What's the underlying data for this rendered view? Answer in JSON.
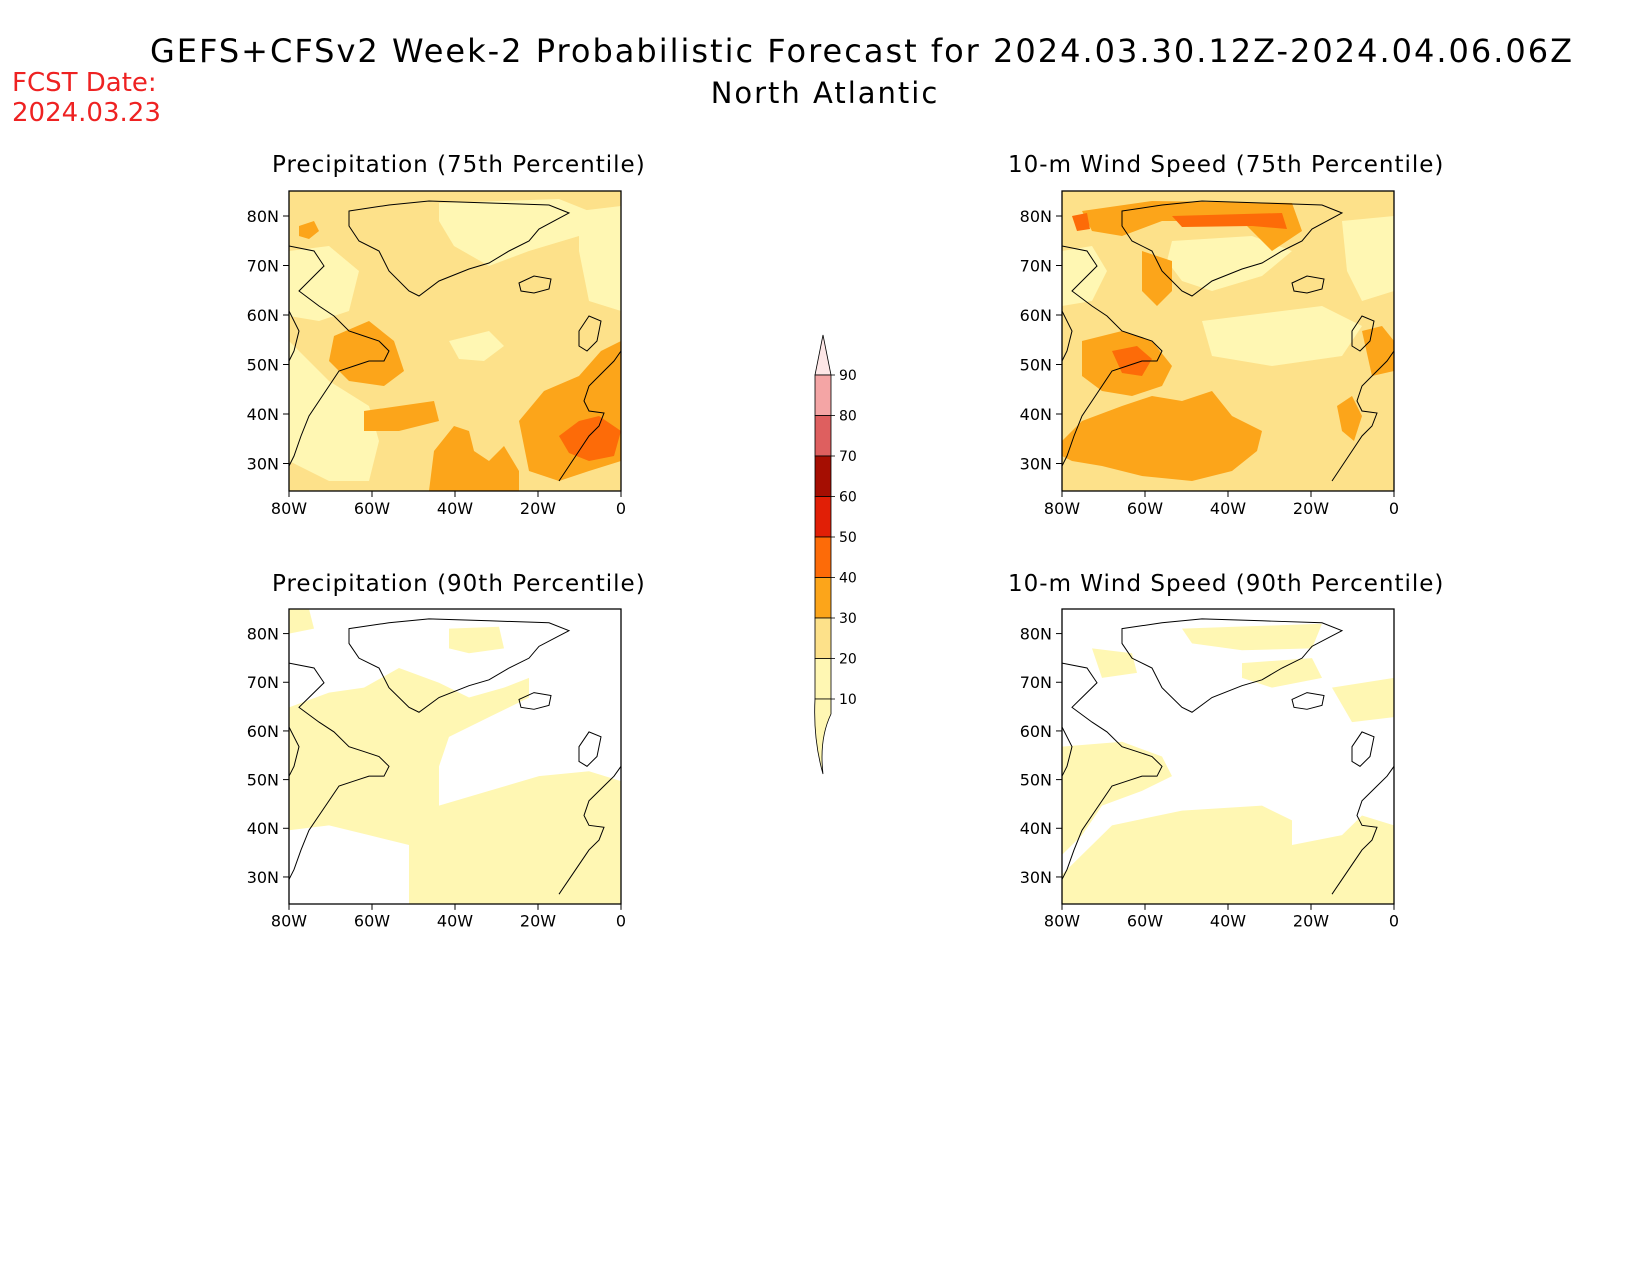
{
  "header": {
    "title": "GEFS+CFSv2 Week-2 Probabilistic Forecast for 2024.03.30.12Z-2024.04.06.06Z",
    "subtitle": "North Atlantic",
    "fcst_label": "FCST Date:",
    "fcst_date": "2024.03.23"
  },
  "colors": {
    "c10": "#fff7b3",
    "c20": "#fde18a",
    "c30": "#fca51a",
    "c40": "#fd6b08",
    "c50": "#e11f06",
    "c60": "#a50e02",
    "c70": "#de5f5f",
    "c80": "#f4a5a5",
    "c90": "#fde6e6"
  },
  "axes": {
    "lat_labels": [
      "80N",
      "70N",
      "60N",
      "50N",
      "40N",
      "30N"
    ],
    "lon_labels": [
      "80W",
      "60W",
      "40W",
      "20W",
      "0"
    ]
  },
  "colorbar": {
    "levels": [
      "10",
      "20",
      "30",
      "40",
      "50",
      "60",
      "70",
      "80",
      "90"
    ]
  },
  "panels": [
    {
      "id": "precip75",
      "title": "Precipitation (75th Percentile)"
    },
    {
      "id": "wind75",
      "title": "10-m Wind Speed (75th Percentile)"
    },
    {
      "id": "precip90",
      "title": "Precipitation (90th Percentile)"
    },
    {
      "id": "wind90",
      "title": "10-m Wind Speed (90th Percentile)"
    }
  ]
}
